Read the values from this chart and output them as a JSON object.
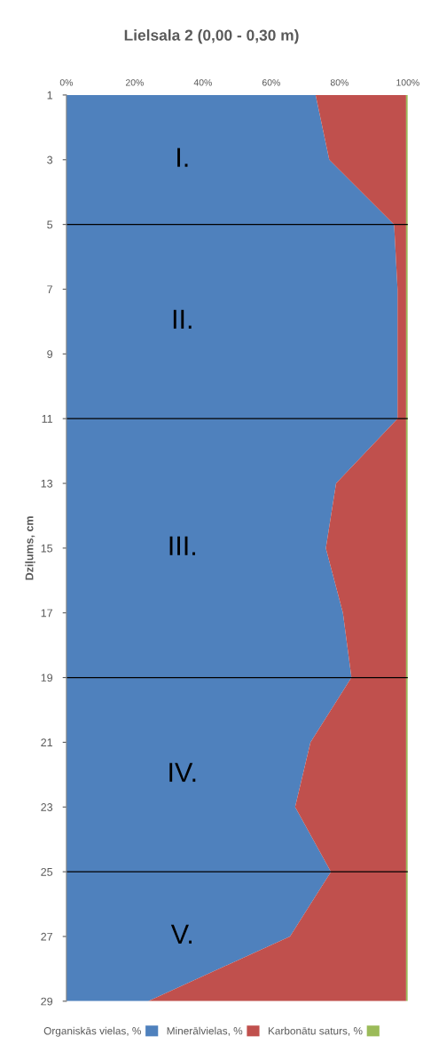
{
  "chart_data": {
    "type": "area",
    "orientation": "horizontal",
    "stacked": true,
    "title": "Lielsala 2 (0,00 - 0,30 m)",
    "ylabel": "Dziļums, cm",
    "x": [
      1,
      3,
      5,
      7,
      9,
      11,
      13,
      15,
      17,
      19,
      21,
      23,
      25,
      27,
      29
    ],
    "series": [
      {
        "name": "Organiskās vielas, %",
        "color": "#4f81bd",
        "values": [
          73,
          77,
          96,
          97,
          97,
          97,
          79,
          76,
          81,
          83.5,
          71.5,
          67,
          77.5,
          65.5,
          24
        ]
      },
      {
        "name": "Minerālvielas, %",
        "color": "#c0504d",
        "values": [
          26.5,
          22.5,
          3.5,
          2.5,
          2.5,
          2.5,
          20.5,
          23.5,
          18.5,
          16,
          28,
          32.5,
          22,
          34,
          75.5
        ]
      },
      {
        "name": "Karbonātu saturs, %",
        "color": "#9bbb59",
        "values": [
          0.5,
          0.5,
          0.5,
          0.5,
          0.5,
          0.5,
          0.5,
          0.5,
          0.5,
          0.5,
          0.5,
          0.5,
          0.5,
          0.5,
          0.5
        ]
      }
    ],
    "xlim": [
      0,
      100
    ],
    "xticks": [
      {
        "value": 0,
        "label": "0%"
      },
      {
        "value": 20,
        "label": "20%"
      },
      {
        "value": 40,
        "label": "40%"
      },
      {
        "value": 60,
        "label": "60%"
      },
      {
        "value": 80,
        "label": "80%"
      },
      {
        "value": 100,
        "label": "100%"
      }
    ],
    "ylim": [
      29,
      1
    ],
    "yticks": [
      1,
      3,
      5,
      7,
      9,
      11,
      13,
      15,
      17,
      19,
      21,
      23,
      25,
      27,
      29
    ],
    "ref_lines": [
      {
        "axis": "y",
        "value": 5,
        "color": "#000000"
      },
      {
        "axis": "y",
        "value": 11,
        "color": "#000000"
      },
      {
        "axis": "y",
        "value": 19,
        "color": "#000000"
      },
      {
        "axis": "y",
        "value": 25,
        "color": "#000000"
      }
    ],
    "annotations": [
      "I.",
      "II.",
      "III.",
      "IV.",
      "V."
    ],
    "legend": "bottom",
    "grid": false
  }
}
